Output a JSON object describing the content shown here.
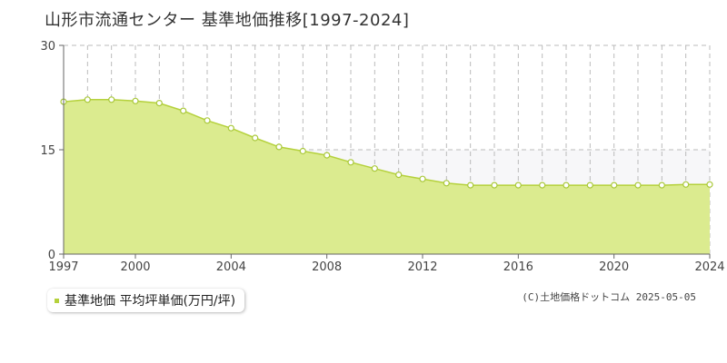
{
  "title": "山形市流通センター 基準地価推移[1997-2024]",
  "legend": {
    "label": "基準地価 平均坪単価(万円/坪)"
  },
  "copyright": "(C)土地価格ドットコム 2025-05-05",
  "colors": {
    "fill": "#dbeb8f",
    "line": "#b5d13c",
    "marker_fill": "#ffffff",
    "marker_stroke": "#a9c83a",
    "grid": "#bbbbbb",
    "upper_band": "#f7f7f9",
    "axis": "#666666"
  },
  "chart_data": {
    "type": "area",
    "title": "山形市流通センター 基準地価推移[1997-2024]",
    "xlabel": "",
    "ylabel": "",
    "xlim": [
      1997,
      2024
    ],
    "ylim": [
      0,
      30
    ],
    "x_ticks": [
      "1997",
      "2000",
      "2004",
      "2008",
      "2012",
      "2016",
      "2020",
      "2024"
    ],
    "y_ticks": [
      "0",
      "15",
      "30"
    ],
    "grid": true,
    "legend_position": "bottom-left",
    "series": [
      {
        "name": "基準地価 平均坪単価(万円/坪)",
        "x": [
          1997,
          1998,
          1999,
          2000,
          2001,
          2002,
          2003,
          2004,
          2005,
          2006,
          2007,
          2008,
          2009,
          2010,
          2011,
          2012,
          2013,
          2014,
          2015,
          2016,
          2017,
          2018,
          2019,
          2020,
          2021,
          2022,
          2023,
          2024
        ],
        "values": [
          21.9,
          22.2,
          22.2,
          22.0,
          21.7,
          20.6,
          19.2,
          18.1,
          16.7,
          15.4,
          14.8,
          14.2,
          13.2,
          12.3,
          11.4,
          10.8,
          10.2,
          9.9,
          9.9,
          9.9,
          9.9,
          9.9,
          9.9,
          9.9,
          9.9,
          9.9,
          10.0,
          10.0
        ]
      }
    ]
  }
}
